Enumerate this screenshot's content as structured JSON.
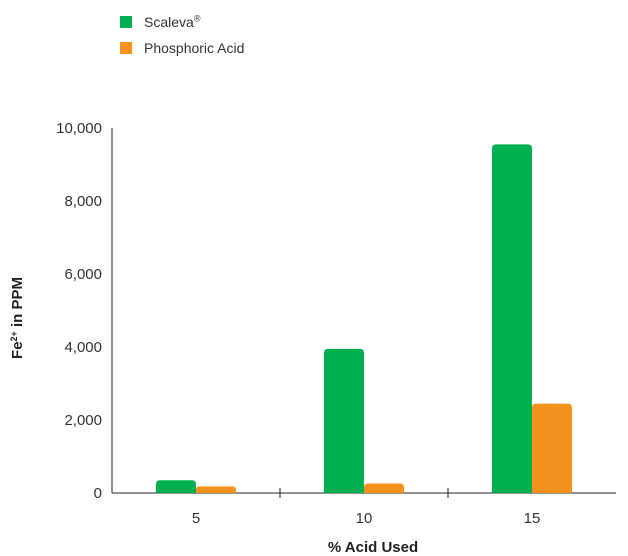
{
  "chart_data": {
    "type": "bar",
    "categories": [
      "5",
      "10",
      "15"
    ],
    "series": [
      {
        "name": "Scaleva",
        "name_mark": "®",
        "color": "#00b050",
        "values": [
          350,
          3950,
          9550
        ]
      },
      {
        "name": "Phosphoric Acid",
        "color": "#f5921e",
        "values": [
          180,
          260,
          2450
        ]
      }
    ],
    "xlabel": "% Acid Used",
    "ylabel": {
      "main": "Fe",
      "sup": "2+",
      "rest": " in PPM"
    },
    "ylim": [
      0,
      10000
    ],
    "yticks": [
      "0",
      "2,000",
      "4,000",
      "6,000",
      "8,000",
      "10,000"
    ],
    "grid": false,
    "legend_position": "top-left"
  }
}
